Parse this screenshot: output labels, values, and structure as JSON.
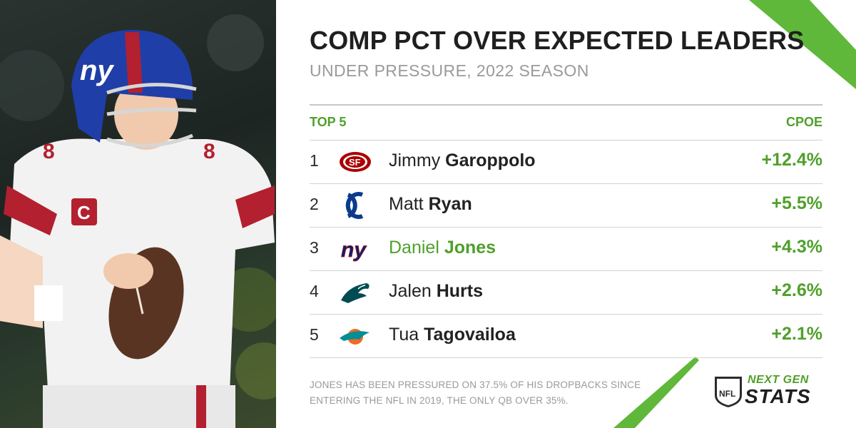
{
  "title": "COMP PCT OVER EXPECTED LEADERS",
  "subtitle": "UNDER PRESSURE, 2022 SEASON",
  "table": {
    "left_header": "TOP 5",
    "right_header": "CPOE",
    "rows": [
      {
        "rank": "1",
        "first": "Jimmy",
        "last": "Garoppolo",
        "value": "+12.4%",
        "team_icon": "49ers-logo-icon",
        "highlight": false
      },
      {
        "rank": "2",
        "first": "Matt",
        "last": "Ryan",
        "value": "+5.5%",
        "team_icon": "colts-logo-icon",
        "highlight": false
      },
      {
        "rank": "3",
        "first": "Daniel",
        "last": "Jones",
        "value": "+4.3%",
        "team_icon": "giants-logo-icon",
        "highlight": true
      },
      {
        "rank": "4",
        "first": "Jalen",
        "last": "Hurts",
        "value": "+2.6%",
        "team_icon": "eagles-logo-icon",
        "highlight": false
      },
      {
        "rank": "5",
        "first": "Tua",
        "last": "Tagovailoa",
        "value": "+2.1%",
        "team_icon": "dolphins-logo-icon",
        "highlight": false
      }
    ]
  },
  "footnote": "JONES HAS BEEN PRESSURED ON 37.5% OF HIS DROPBACKS SINCE ENTERING THE NFL IN 2019, THE ONLY QB OVER 35%.",
  "brand": {
    "line1": "NEXT GEN",
    "line2": "STATS",
    "shield_text": "NFL"
  },
  "photo": {
    "jersey_number": "8",
    "captain_patch": "C",
    "helmet_text": "ny"
  },
  "colors": {
    "accent_green": "#4fa02b",
    "giants_blue": "#0b2265",
    "giants_red": "#a71930"
  }
}
